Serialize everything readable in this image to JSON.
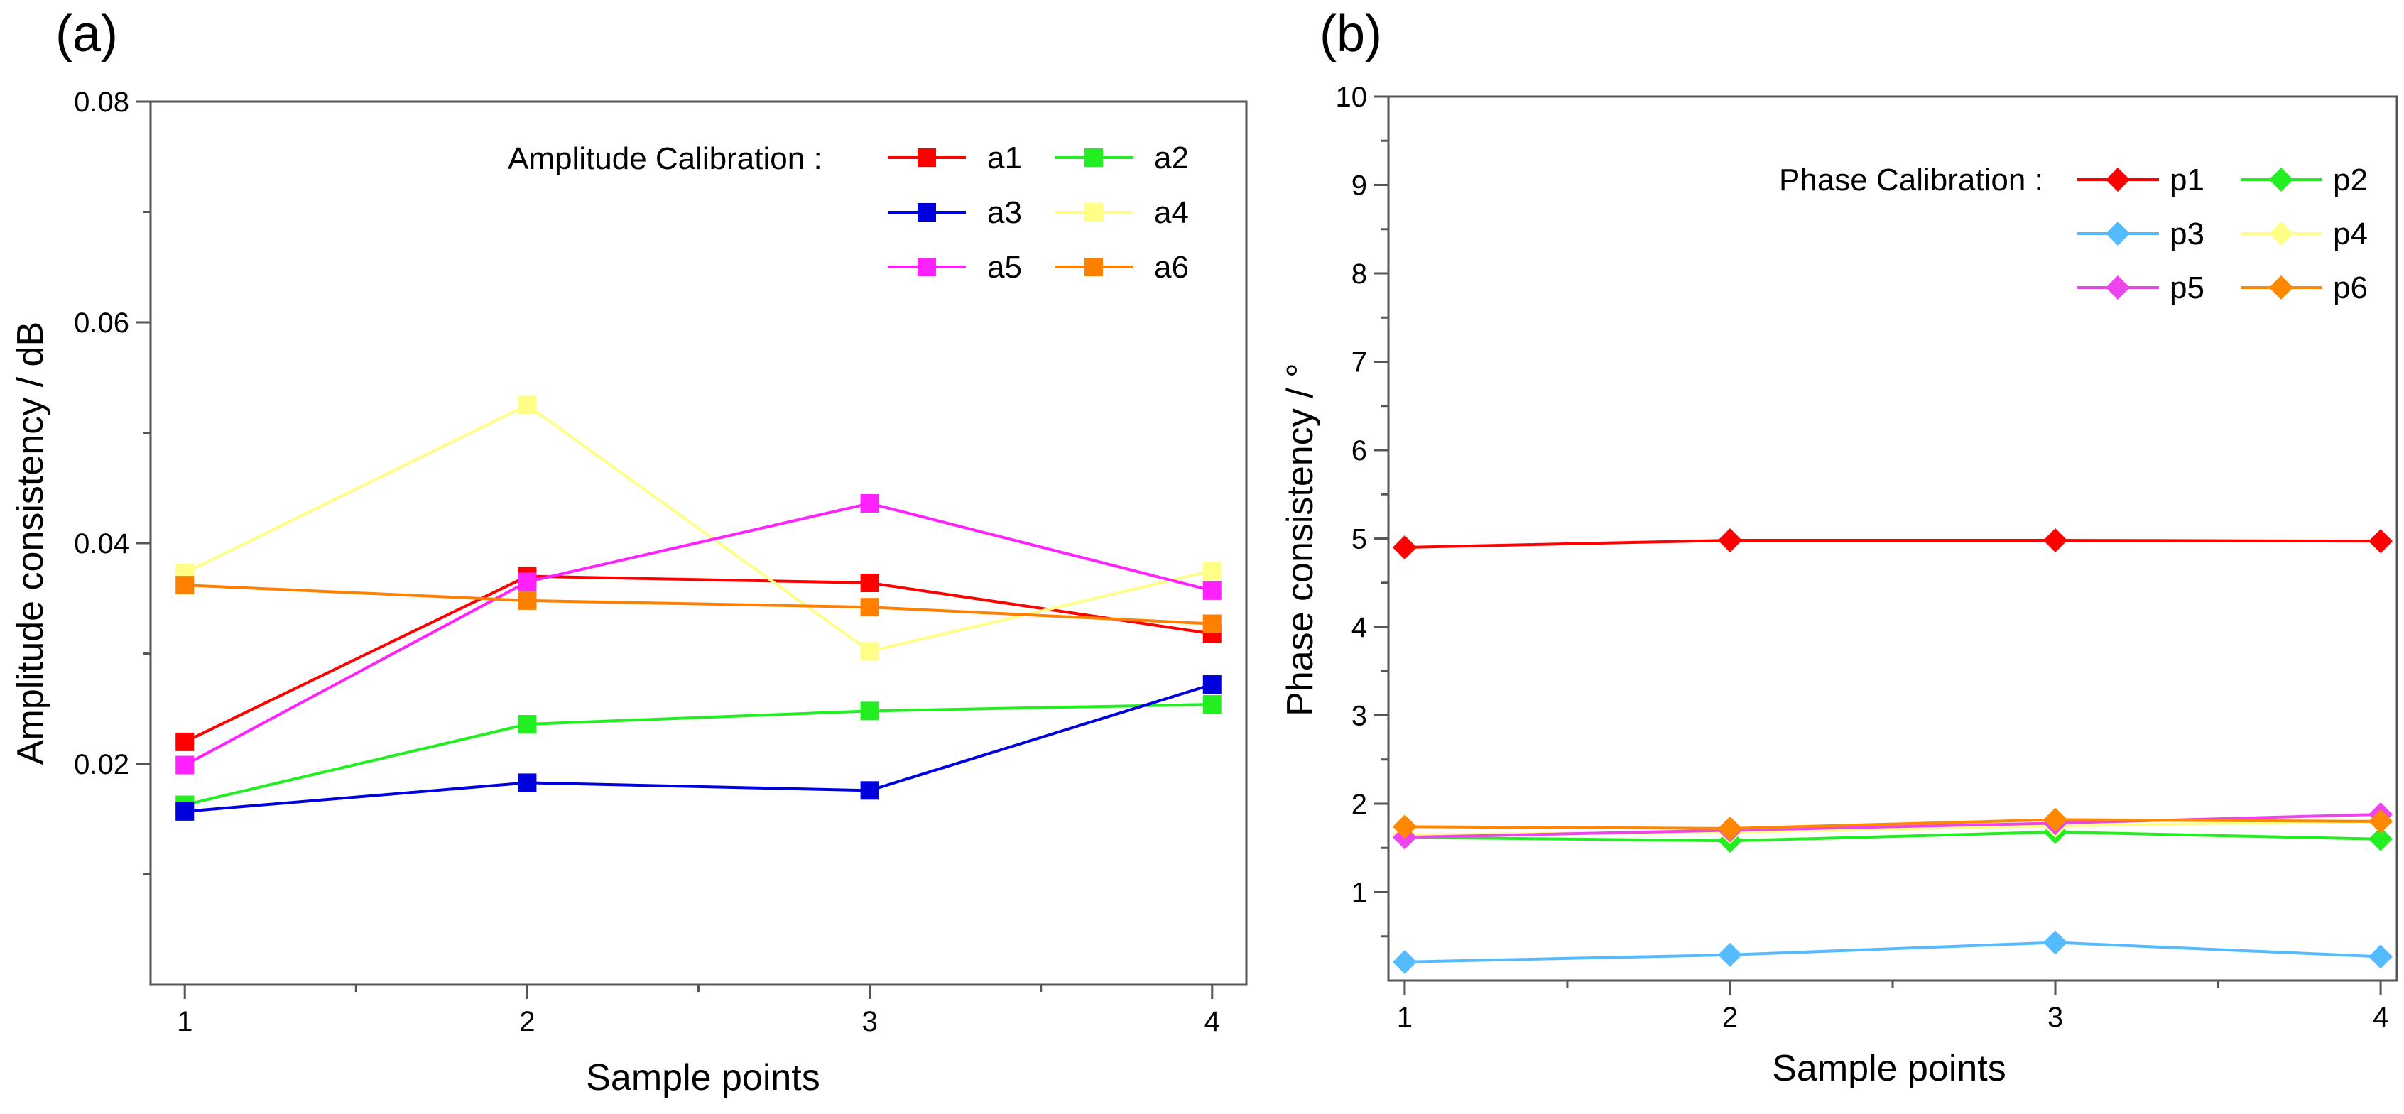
{
  "chart_data": [
    {
      "type": "line",
      "panel_label": "(a)",
      "xlabel": "Sample points",
      "ylabel": "Amplitude consistency / dB",
      "x": [
        1,
        2,
        3,
        4
      ],
      "xlim": [
        0.9,
        4.1
      ],
      "ylim": [
        0,
        0.08
      ],
      "yticks": [
        0.02,
        0.04,
        0.06,
        0.08
      ],
      "ytick_labels": [
        "0.02",
        "0.04",
        "0.06",
        "0.08"
      ],
      "grid": false,
      "marker": "square",
      "legend": {
        "title": "Amplitude Calibration :",
        "placement": "top-right",
        "columns": 2
      },
      "series": [
        {
          "name": "a1",
          "color": "#ff0000",
          "values": [
            0.022,
            0.037,
            0.0364,
            0.0318
          ]
        },
        {
          "name": "a2",
          "color": "#22ee22",
          "values": [
            0.0163,
            0.0236,
            0.0248,
            0.0254
          ]
        },
        {
          "name": "a3",
          "color": "#0000dd",
          "values": [
            0.0157,
            0.0183,
            0.0176,
            0.0272
          ]
        },
        {
          "name": "a4",
          "color": "#ffff88",
          "values": [
            0.0373,
            0.0525,
            0.0302,
            0.0375
          ]
        },
        {
          "name": "a5",
          "color": "#ff22ff",
          "values": [
            0.0199,
            0.0365,
            0.0436,
            0.0357
          ]
        },
        {
          "name": "a6",
          "color": "#ff8000",
          "values": [
            0.0362,
            0.0348,
            0.0342,
            0.0327
          ]
        }
      ]
    },
    {
      "type": "line",
      "panel_label": "(b)",
      "xlabel": "Sample points",
      "ylabel": "Phase consistency / °",
      "x": [
        1,
        2,
        3,
        4
      ],
      "xlim": [
        0.95,
        4.05
      ],
      "ylim": [
        0,
        10
      ],
      "yticks": [
        1,
        2,
        3,
        4,
        5,
        6,
        7,
        8,
        9,
        10
      ],
      "ytick_labels": [
        "1",
        "2",
        "3",
        "4",
        "5",
        "6",
        "7",
        "8",
        "9",
        "10"
      ],
      "grid": false,
      "marker": "diamond",
      "legend": {
        "title": "Phase Calibration :",
        "placement": "top-right",
        "columns": 2
      },
      "series": [
        {
          "name": "p1",
          "color": "#ff0000",
          "values": [
            4.9,
            4.98,
            4.98,
            4.97
          ]
        },
        {
          "name": "p2",
          "color": "#22ee22",
          "values": [
            1.62,
            1.58,
            1.68,
            1.6
          ]
        },
        {
          "name": "p3",
          "color": "#55bbff",
          "values": [
            0.21,
            0.29,
            0.43,
            0.27
          ]
        },
        {
          "name": "p4",
          "color": "#ffff88",
          "values": [
            1.65,
            1.68,
            1.75,
            1.8
          ]
        },
        {
          "name": "p5",
          "color": "#ee44ee",
          "values": [
            1.62,
            1.7,
            1.78,
            1.88
          ]
        },
        {
          "name": "p6",
          "color": "#ff8800",
          "values": [
            1.74,
            1.72,
            1.82,
            1.8
          ]
        }
      ]
    }
  ]
}
